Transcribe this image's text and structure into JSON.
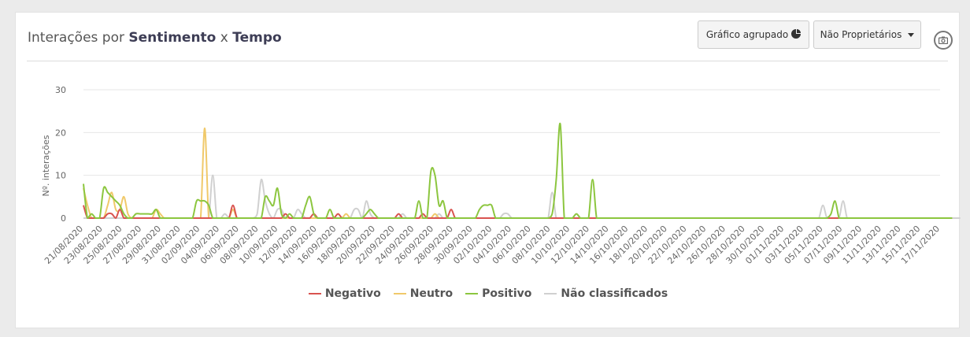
{
  "header": {
    "title_prefix": "Interações por ",
    "title_b1": "Sentimento",
    "title_mid": " x ",
    "title_b2": "Tempo",
    "btn_grouped": "Gráfico agrupado",
    "btn_filter": "Não Proprietários"
  },
  "icons": {
    "grouped": "pie-chart-icon",
    "filter": "chevron-down-icon",
    "export": "camera-icon"
  },
  "chart_data": {
    "type": "line",
    "ylabel": "Nº. interações",
    "ylim": [
      0,
      30
    ],
    "yticks": [
      0,
      10,
      20,
      30
    ],
    "grid": true,
    "legend_position": "bottom",
    "tick_labels": [
      "21/08/2020",
      "23/08/2020",
      "25/08/2020",
      "27/08/2020",
      "29/08/2020",
      "31/08/2020",
      "02/09/2020",
      "04/09/2020",
      "06/09/2020",
      "08/09/2020",
      "10/09/2020",
      "12/09/2020",
      "14/09/2020",
      "16/09/2020",
      "18/09/2020",
      "20/09/2020",
      "22/09/2020",
      "24/09/2020",
      "26/09/2020",
      "28/09/2020",
      "30/09/2020",
      "02/10/2020",
      "04/10/2020",
      "06/10/2020",
      "08/10/2020",
      "10/10/2020",
      "12/10/2020",
      "14/10/2020",
      "16/10/2020",
      "18/10/2020",
      "20/10/2020",
      "22/10/2020",
      "24/10/2020",
      "26/10/2020",
      "28/10/2020",
      "30/10/2020",
      "01/11/2020",
      "03/11/2020",
      "05/11/2020",
      "07/11/2020",
      "09/11/2020",
      "11/11/2020",
      "13/11/2020",
      "15/11/2020",
      "17/11/2020"
    ],
    "series": [
      {
        "name": "Negativo",
        "color": "#d9534f",
        "values": [
          3,
          0,
          0,
          0,
          0,
          0,
          1,
          1,
          0,
          2,
          0,
          0,
          0,
          0,
          0,
          0,
          0,
          0,
          0,
          0,
          0,
          0,
          0,
          0,
          0,
          0,
          0,
          0,
          0,
          0,
          0,
          0,
          0,
          0,
          0,
          0,
          0,
          3,
          0,
          0,
          0,
          0,
          0,
          0,
          0,
          0,
          0,
          0,
          0,
          0,
          1,
          0,
          0,
          0,
          0,
          0,
          0,
          1,
          0,
          0,
          0,
          0,
          0,
          1,
          0,
          0,
          0,
          0,
          0,
          0,
          0,
          0,
          0,
          0,
          0,
          0,
          0,
          0,
          1,
          0,
          0,
          0,
          0,
          0,
          1,
          0,
          0,
          0,
          0,
          0,
          0,
          2,
          0,
          0,
          0,
          0,
          0,
          0,
          0,
          0,
          0,
          0,
          0,
          0,
          0,
          0,
          0,
          0,
          0,
          0,
          0,
          0,
          0,
          0,
          0,
          0,
          0,
          0,
          0,
          0,
          0,
          0,
          0,
          0,
          0,
          0,
          0,
          0,
          0,
          0,
          0,
          0,
          0,
          0,
          0,
          0,
          0,
          0,
          0,
          0,
          0,
          0,
          0,
          0,
          0,
          0,
          0,
          0,
          0,
          0,
          0,
          0,
          0,
          0,
          0,
          0,
          0,
          0,
          0,
          0,
          0,
          0,
          0,
          0,
          0,
          0,
          0,
          0,
          0,
          0,
          0,
          0,
          0,
          0,
          0,
          0,
          0,
          0,
          0,
          0,
          0,
          0,
          0,
          0,
          0,
          0,
          0,
          0,
          0,
          0,
          0,
          0,
          0,
          0,
          0,
          0,
          0,
          0,
          0,
          0,
          0,
          0,
          0,
          0,
          0,
          0,
          0,
          0,
          0,
          0,
          0,
          0,
          0
        ]
      },
      {
        "name": "Neutro",
        "color": "#f0c96a",
        "values": [
          7,
          3,
          0,
          0,
          0,
          0,
          3,
          6,
          2,
          2,
          5,
          1,
          0,
          0,
          0,
          0,
          0,
          0,
          2,
          1,
          0,
          0,
          0,
          0,
          0,
          0,
          0,
          0,
          0,
          0,
          21,
          0,
          0,
          0,
          0,
          0,
          0,
          2,
          0,
          0,
          0,
          0,
          0,
          0,
          0,
          0,
          0,
          0,
          0,
          0,
          0,
          0,
          0,
          0,
          0,
          0,
          0,
          0,
          0,
          0,
          0,
          0,
          0,
          0,
          0,
          1,
          0,
          0,
          0,
          0,
          0,
          0,
          0,
          0,
          0,
          0,
          0,
          0,
          0,
          0,
          0,
          0,
          0,
          0,
          0,
          0,
          0,
          1,
          0,
          0,
          0,
          0,
          0,
          0,
          0,
          0,
          0,
          0,
          0,
          0,
          0,
          0,
          0,
          0,
          0,
          0,
          0,
          0,
          0,
          0,
          0,
          0,
          0,
          0,
          0,
          0,
          0,
          0,
          0,
          0,
          0,
          0,
          0,
          0,
          0,
          0,
          0,
          0,
          0,
          0,
          0,
          0,
          0,
          0,
          0,
          0,
          0,
          0,
          0,
          0,
          0,
          0,
          0,
          0,
          0,
          0,
          0,
          0,
          0,
          0,
          0,
          0,
          0,
          0,
          0,
          0,
          0,
          0,
          0,
          0,
          0,
          0,
          0,
          0,
          0,
          0,
          0,
          0,
          0,
          0,
          0,
          0,
          0,
          0,
          0,
          0,
          0,
          0,
          0,
          0,
          0,
          0,
          0,
          0,
          0,
          0,
          0,
          0,
          0,
          0,
          0,
          0,
          0,
          0,
          0,
          0,
          0,
          0,
          0,
          0,
          0,
          0,
          0,
          0,
          0,
          0,
          0,
          0,
          0,
          0,
          0,
          0,
          0,
          0,
          0,
          0
        ]
      },
      {
        "name": "Positivo",
        "color": "#8cc63f",
        "values": [
          8,
          0,
          1,
          0,
          0,
          7,
          6,
          5,
          4,
          3,
          1,
          0,
          0,
          1,
          1,
          1,
          1,
          1,
          2,
          0,
          0,
          0,
          0,
          0,
          0,
          0,
          0,
          0,
          4,
          4,
          4,
          3,
          0,
          0,
          0,
          0,
          0,
          0,
          0,
          0,
          0,
          0,
          0,
          0,
          0,
          5,
          4,
          3,
          7,
          1,
          0,
          1,
          0,
          0,
          0,
          3,
          5,
          1,
          0,
          0,
          0,
          2,
          0,
          0,
          0,
          0,
          0,
          0,
          0,
          0,
          1,
          2,
          1,
          0,
          0,
          0,
          0,
          0,
          0,
          0,
          0,
          0,
          0,
          4,
          0,
          0,
          11,
          10,
          3,
          4,
          0,
          0,
          0,
          0,
          0,
          0,
          0,
          0,
          2,
          3,
          3,
          3,
          0,
          0,
          0,
          0,
          0,
          0,
          0,
          0,
          0,
          0,
          0,
          0,
          0,
          0,
          1,
          9,
          22,
          0,
          0,
          0,
          1,
          0,
          0,
          0,
          9,
          0,
          0,
          0,
          0,
          0,
          0,
          0,
          0,
          0,
          0,
          0,
          0,
          0,
          0,
          0,
          0,
          0,
          0,
          0,
          0,
          0,
          0,
          0,
          0,
          0,
          0,
          0,
          0,
          0,
          0,
          0,
          0,
          0,
          0,
          0,
          0,
          0,
          0,
          0,
          0,
          0,
          0,
          0,
          0,
          0,
          0,
          0,
          0,
          0,
          0,
          0,
          0,
          0,
          0,
          0,
          0,
          0,
          0,
          1,
          4,
          0,
          0,
          0,
          0,
          0,
          0,
          0,
          0,
          0,
          0,
          0,
          0,
          0,
          0,
          0,
          0,
          0,
          0,
          0,
          0,
          0,
          0,
          0,
          0,
          0,
          0,
          0,
          0,
          0
        ]
      },
      {
        "name": "Não classificados",
        "color": "#d0d0d0",
        "values": [
          0,
          0,
          0,
          0,
          0,
          0,
          0,
          0,
          0,
          0,
          0,
          0,
          0,
          0,
          0,
          0,
          0,
          0,
          0,
          0,
          0,
          0,
          0,
          0,
          0,
          0,
          0,
          0,
          0,
          0,
          0,
          0,
          10,
          0,
          0,
          1,
          0,
          0,
          0,
          0,
          0,
          0,
          0,
          1,
          9,
          4,
          1,
          0,
          2,
          2,
          0,
          0,
          0,
          2,
          1,
          0,
          0,
          0,
          0,
          0,
          0,
          0,
          0,
          0,
          0,
          0,
          0,
          2,
          2,
          0,
          4,
          1,
          0,
          0,
          0,
          0,
          0,
          0,
          0,
          1,
          0,
          0,
          0,
          0,
          0,
          0,
          0,
          0,
          1,
          0,
          0,
          0,
          0,
          0,
          0,
          0,
          0,
          0,
          0,
          0,
          0,
          0,
          0,
          0,
          1,
          1,
          0,
          0,
          0,
          0,
          0,
          0,
          0,
          0,
          0,
          0,
          6,
          0,
          0,
          0,
          0,
          0,
          1,
          0,
          0,
          0,
          0,
          0,
          0,
          0,
          0,
          0,
          0,
          0,
          0,
          0,
          0,
          0,
          0,
          0,
          0,
          0,
          0,
          0,
          0,
          0,
          0,
          0,
          0,
          0,
          0,
          0,
          0,
          0,
          0,
          0,
          0,
          0,
          0,
          0,
          0,
          0,
          0,
          0,
          0,
          0,
          0,
          0,
          0,
          0,
          0,
          0,
          0,
          0,
          0,
          0,
          0,
          0,
          0,
          0,
          0,
          0,
          0,
          3,
          0,
          0,
          0,
          0,
          4,
          0,
          0,
          0,
          0,
          0,
          0,
          0,
          0,
          0,
          0,
          0,
          0,
          0,
          0,
          0,
          0,
          0,
          0,
          0,
          0,
          0,
          0,
          0,
          0,
          0,
          0,
          0,
          0,
          0
        ]
      }
    ]
  }
}
